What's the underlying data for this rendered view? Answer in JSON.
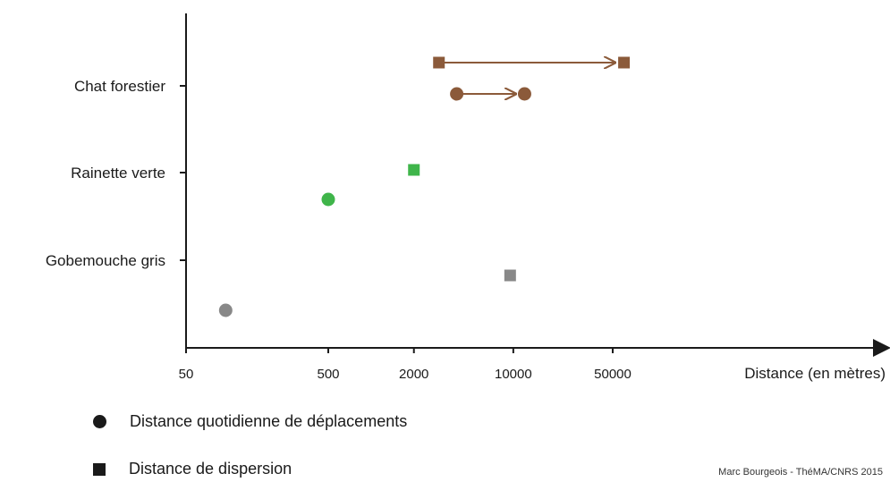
{
  "chart_data": {
    "type": "scatter",
    "x_scale": "log",
    "xlabel": "Distance (en mètres)",
    "x_ticks": [
      50,
      500,
      2000,
      10000,
      50000
    ],
    "categories": [
      "Gobemouche gris",
      "Rainette verte",
      "Chat forestier"
    ],
    "series": [
      {
        "name": "Distance quotidienne de déplacements",
        "marker": "circle",
        "points": [
          {
            "category": "Gobemouche gris",
            "x": 95,
            "color": "#888888"
          },
          {
            "category": "Rainette verte",
            "x": 500,
            "color": "#3fb54a"
          },
          {
            "category": "Chat forestier",
            "x_range": [
              4000,
              12000
            ],
            "color": "#8b5a3a"
          }
        ]
      },
      {
        "name": "Distance de dispersion",
        "marker": "square",
        "points": [
          {
            "category": "Gobemouche gris",
            "x": 9500,
            "color": "#888888"
          },
          {
            "category": "Rainette verte",
            "x": 2000,
            "color": "#3fb54a"
          },
          {
            "category": "Chat forestier",
            "x_range": [
              3000,
              60000
            ],
            "color": "#8b5a3a"
          }
        ]
      }
    ]
  },
  "legend": {
    "daily": "Distance quotidienne de déplacements",
    "dispersion": "Distance de dispersion"
  },
  "credit": "Marc Bourgeois - ThéMA/CNRS 2015"
}
